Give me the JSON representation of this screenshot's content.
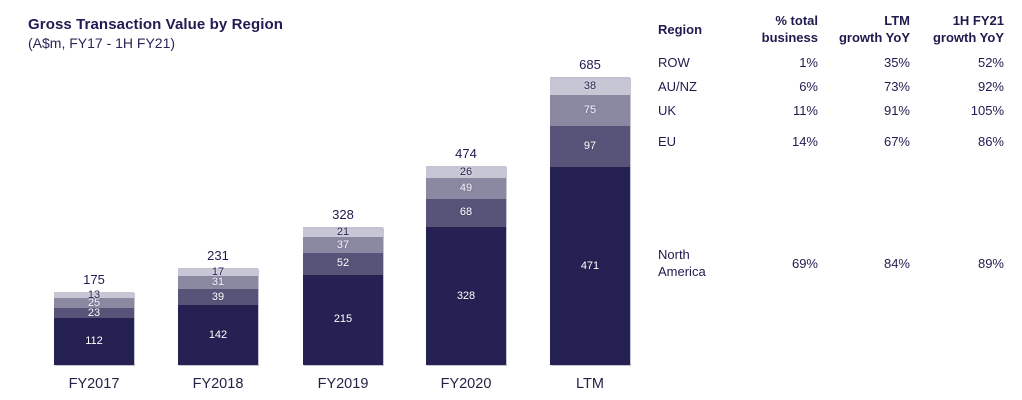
{
  "chart_data": {
    "type": "bar",
    "stacked": true,
    "title": "Gross Transaction Value by Region",
    "subtitle": "(A$m, FY17 - 1H FY21)",
    "categories": [
      "FY2017",
      "FY2018",
      "FY2019",
      "FY2020",
      "LTM"
    ],
    "totals": [
      175,
      231,
      328,
      474,
      685
    ],
    "series": [
      {
        "name": "North America",
        "color": "#262153",
        "label_color": "#ffffff",
        "label_style": "light",
        "show_labels": true,
        "values": [
          112,
          142,
          215,
          328,
          471
        ]
      },
      {
        "name": "EU",
        "color": "#575379",
        "label_color": "#ffffff",
        "label_style": "light",
        "show_labels": true,
        "values": [
          23,
          39,
          52,
          68,
          97
        ]
      },
      {
        "name": "UK",
        "color": "#8b88a2",
        "label_color": "#f4f3f8",
        "label_style": "light",
        "show_labels": true,
        "values": [
          25,
          31,
          37,
          49,
          75
        ]
      },
      {
        "name": "AU/NZ",
        "color": "#c7c6d4",
        "label_color": "#2a2455",
        "label_style": "dark",
        "show_labels": true,
        "values": [
          13,
          17,
          21,
          26,
          38
        ]
      },
      {
        "name": "ROW",
        "color": "#c2c1d2",
        "label_color": "#2a2455",
        "label_style": "dark",
        "show_labels": false,
        "values": [
          2,
          2,
          3,
          3,
          4
        ]
      }
    ],
    "ylim": [
      0,
      700
    ],
    "grid": false,
    "legend": "none"
  },
  "table": {
    "headers": [
      {
        "id": "region",
        "lines": [
          "Region"
        ]
      },
      {
        "id": "pct_total",
        "lines": [
          "% total",
          "business"
        ]
      },
      {
        "id": "ltm_growth",
        "lines": [
          "LTM",
          "growth YoY"
        ]
      },
      {
        "id": "h1_growth",
        "lines": [
          "1H FY21",
          "growth YoY"
        ]
      }
    ],
    "rows": [
      {
        "id": "row",
        "region": "ROW",
        "pct_total": "1%",
        "ltm_growth": "35%",
        "h1_growth": "52%"
      },
      {
        "id": "aunz",
        "region": "AU/NZ",
        "pct_total": "6%",
        "ltm_growth": "73%",
        "h1_growth": "92%"
      },
      {
        "id": "uk",
        "region": "UK",
        "pct_total": "11%",
        "ltm_growth": "91%",
        "h1_growth": "105%"
      },
      {
        "id": "eu",
        "region": "EU",
        "pct_total": "14%",
        "ltm_growth": "67%",
        "h1_growth": "86%"
      },
      {
        "id": "na",
        "region": "North America",
        "pct_total": "69%",
        "ltm_growth": "84%",
        "h1_growth": "89%"
      }
    ]
  },
  "colors": {
    "background": "#ffffff",
    "text_navy": "#211b52",
    "bar_north_america": "#262153",
    "bar_eu": "#575379",
    "bar_uk": "#8b88a2",
    "bar_aunz": "#c7c6d4",
    "bar_row": "#c2c1d2"
  }
}
